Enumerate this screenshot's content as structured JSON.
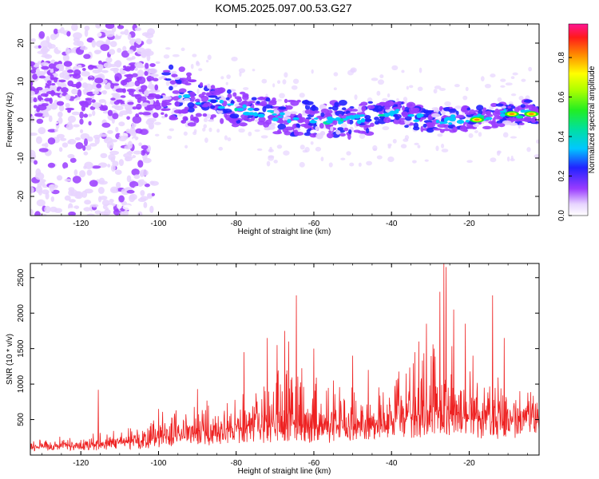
{
  "title": "KOM5.2025.097.00.53.G27",
  "chart_data": [
    {
      "type": "heatmap",
      "title": "KOM5.2025.097.00.53.G27",
      "xlabel": "Height of straight line (km)",
      "ylabel": "Frequency (Hz)",
      "xlim": [
        -133,
        -2
      ],
      "ylim": [
        -25,
        25
      ],
      "x_ticks": [
        -120,
        -100,
        -80,
        -60,
        -40,
        -20
      ],
      "y_ticks": [
        -20,
        -10,
        0,
        10,
        20
      ],
      "colorbar": {
        "label": "Normalized spectral amplitude",
        "range": [
          0,
          0.97
        ],
        "ticks": [
          0.0,
          0.2,
          0.4,
          0.6,
          0.8
        ],
        "tick_labels": [
          "0.0",
          "0.2",
          "0.4",
          "0.6",
          "0.8"
        ]
      },
      "ridge": {
        "description_points": [
          {
            "x": -125,
            "y": 8
          },
          {
            "x": -110,
            "y": 8
          },
          {
            "x": -100,
            "y": 8
          },
          {
            "x": -90,
            "y": 5
          },
          {
            "x": -80,
            "y": 3
          },
          {
            "x": -70,
            "y": 1
          },
          {
            "x": -60,
            "y": 0
          },
          {
            "x": -50,
            "y": 0
          },
          {
            "x": -40,
            "y": 2
          },
          {
            "x": -30,
            "y": 0
          },
          {
            "x": -20,
            "y": 0
          },
          {
            "x": -10,
            "y": 1.5
          },
          {
            "x": -3,
            "y": 2
          }
        ],
        "peak_amplitude_points": [
          {
            "x": -18,
            "y": 0,
            "amp": 0.9
          },
          {
            "x": -9,
            "y": 1.5,
            "amp": 0.9
          },
          {
            "x": -4,
            "y": 1.5,
            "amp": 0.85
          }
        ]
      }
    },
    {
      "type": "line",
      "xlabel": "Height of straight line (km)",
      "ylabel": "SNR (10 * v/v)",
      "xlim": [
        -133,
        -2
      ],
      "ylim": [
        0,
        2700
      ],
      "x_ticks": [
        -120,
        -100,
        -80,
        -60,
        -40,
        -20
      ],
      "y_ticks": [
        500,
        1000,
        1500,
        2000,
        2500
      ],
      "series": [
        {
          "color": "#ee2222",
          "envelope": [
            {
              "x": -133,
              "base": 120,
              "amp": 130
            },
            {
              "x": -120,
              "base": 150,
              "amp": 140
            },
            {
              "x": -105,
              "base": 200,
              "amp": 250
            },
            {
              "x": -95,
              "base": 300,
              "amp": 450
            },
            {
              "x": -85,
              "base": 320,
              "amp": 550
            },
            {
              "x": -75,
              "base": 400,
              "amp": 700
            },
            {
              "x": -65,
              "base": 420,
              "amp": 900
            },
            {
              "x": -55,
              "base": 400,
              "amp": 600
            },
            {
              "x": -45,
              "base": 450,
              "amp": 600
            },
            {
              "x": -35,
              "base": 550,
              "amp": 900
            },
            {
              "x": -25,
              "base": 650,
              "amp": 1100
            },
            {
              "x": -15,
              "base": 550,
              "amp": 700
            },
            {
              "x": -8,
              "base": 600,
              "amp": 400
            },
            {
              "x": -2,
              "base": 650,
              "amp": 250
            }
          ],
          "spikes": [
            {
              "x": -115.5,
              "y": 920
            },
            {
              "x": -100,
              "y": 650
            },
            {
              "x": -90,
              "y": 930
            },
            {
              "x": -78,
              "y": 1450
            },
            {
              "x": -72,
              "y": 1650
            },
            {
              "x": -69.5,
              "y": 1550
            },
            {
              "x": -67.5,
              "y": 1750
            },
            {
              "x": -66.5,
              "y": 1600
            },
            {
              "x": -64.5,
              "y": 2250
            },
            {
              "x": -60,
              "y": 1500
            },
            {
              "x": -55,
              "y": 1050
            },
            {
              "x": -50,
              "y": 1400
            },
            {
              "x": -46,
              "y": 1200
            },
            {
              "x": -34,
              "y": 1450
            },
            {
              "x": -33,
              "y": 1600
            },
            {
              "x": -31,
              "y": 1850
            },
            {
              "x": -29,
              "y": 1500
            },
            {
              "x": -27.5,
              "y": 2300
            },
            {
              "x": -26.5,
              "y": 2700
            },
            {
              "x": -26,
              "y": 2650
            },
            {
              "x": -24,
              "y": 2050
            },
            {
              "x": -21,
              "y": 1850
            },
            {
              "x": -19,
              "y": 1400
            },
            {
              "x": -14,
              "y": 2250
            },
            {
              "x": -11,
              "y": 1650
            },
            {
              "x": -7,
              "y": 900
            }
          ]
        }
      ]
    }
  ]
}
